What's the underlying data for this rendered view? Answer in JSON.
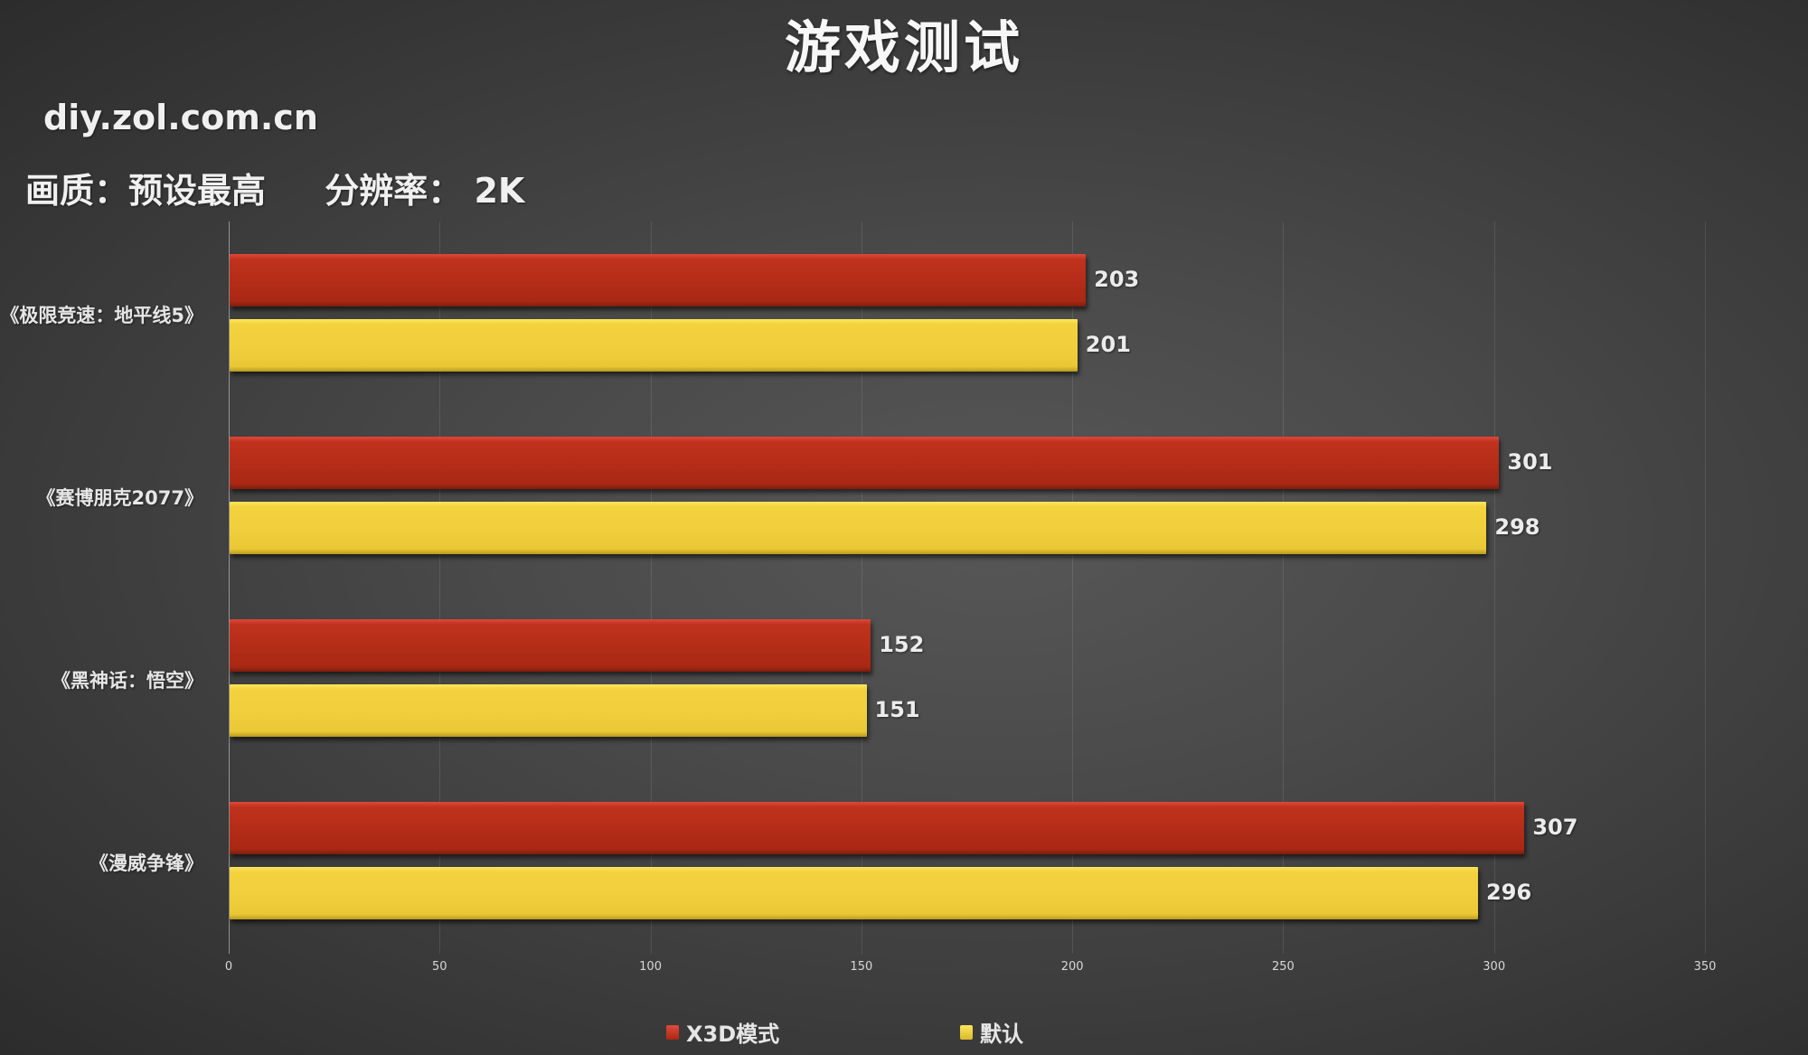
{
  "header": {
    "title": "游戏测试",
    "watermark": "diy.zol.com.cn",
    "quality_label": "画质：预设最高",
    "resolution_label": "分辨率： 2K"
  },
  "colors": {
    "x3d": "#b52d18",
    "default": "#f2cf3c",
    "background": "#474747"
  },
  "axis": {
    "ticks": [
      "0",
      "50",
      "100",
      "150",
      "200",
      "250",
      "300",
      "350"
    ]
  },
  "legend": [
    {
      "label": "X3D模式",
      "color": "#b52d18"
    },
    {
      "label": "默认",
      "color": "#f2cf3c"
    }
  ],
  "groups": [
    {
      "label": "《极限竞速：地平线5》",
      "x3d": "203",
      "default": "201"
    },
    {
      "label": "《赛博朋克2077》",
      "x3d": "301",
      "default": "298"
    },
    {
      "label": "《黑神话：悟空》",
      "x3d": "152",
      "default": "151"
    },
    {
      "label": "《漫威争锋》",
      "x3d": "307",
      "default": "296"
    }
  ],
  "chart_data": {
    "type": "bar",
    "orientation": "horizontal",
    "title": "游戏测试",
    "subtitle": "画质：预设最高  分辨率： 2K",
    "categories": [
      "《极限竞速：地平线5》",
      "《赛博朋克2077》",
      "《黑神话：悟空》",
      "《漫威争锋》"
    ],
    "series": [
      {
        "name": "X3D模式",
        "color": "#b52d18",
        "values": [
          203,
          301,
          152,
          307
        ]
      },
      {
        "name": "默认",
        "color": "#f2cf3c",
        "values": [
          201,
          298,
          151,
          296
        ]
      }
    ],
    "xlabel": "",
    "ylabel": "",
    "xlim": [
      0,
      350
    ],
    "xticks": [
      0,
      50,
      100,
      150,
      200,
      250,
      300,
      350
    ],
    "grid": true,
    "legend_position": "bottom",
    "data_labels": true
  }
}
